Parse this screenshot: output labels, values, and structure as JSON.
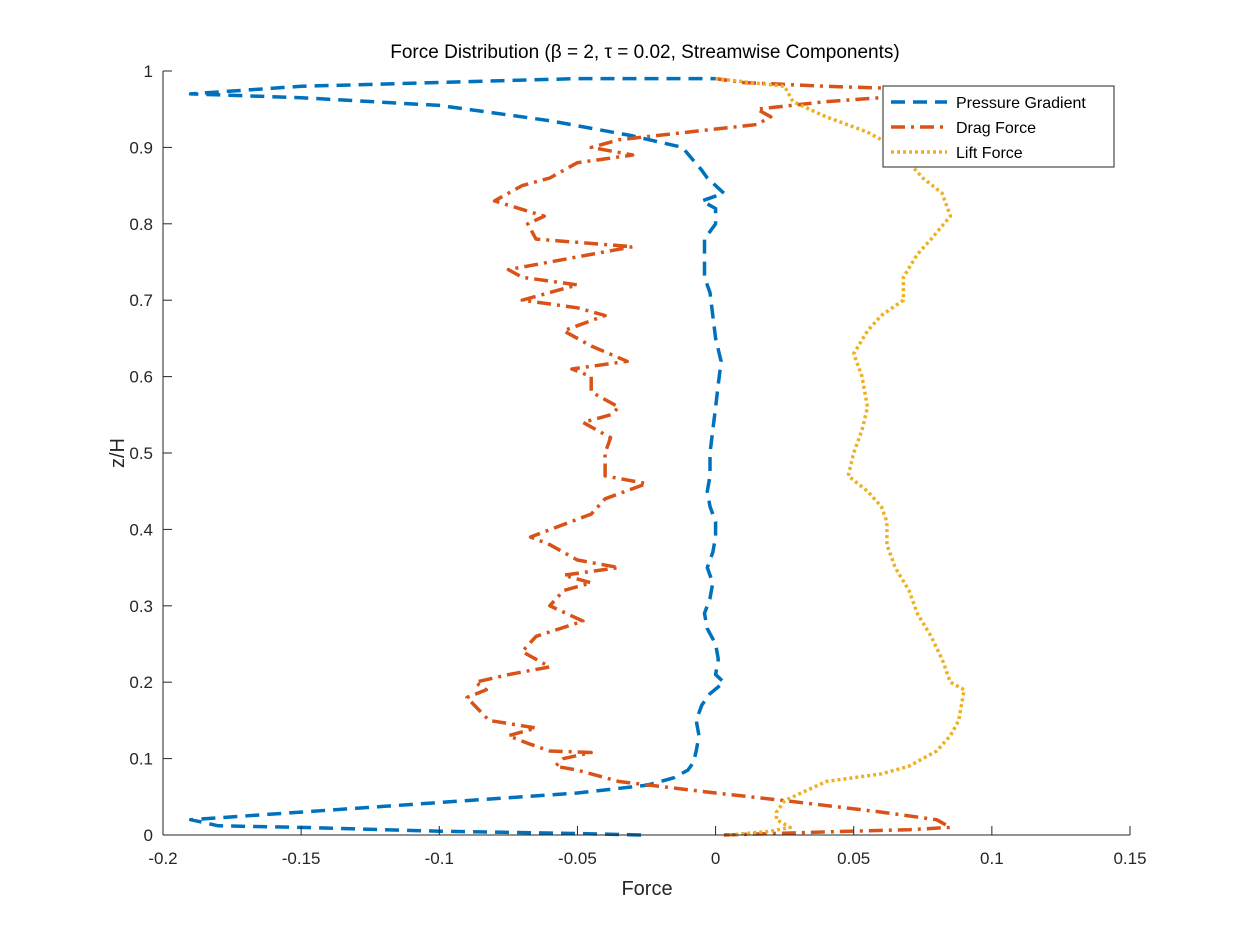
{
  "chart_data": {
    "type": "line",
    "title": "Force Distribution (β = 2, τ = 0.02, Streamwise Components)",
    "xlabel": "Force",
    "ylabel": "z/H",
    "xlim": [
      -0.2,
      0.15
    ],
    "ylim": [
      0,
      1
    ],
    "xticks": [
      "-0.2",
      "-0.15",
      "-0.1",
      "-0.05",
      "0",
      "0.05",
      "0.1",
      "0.15"
    ],
    "yticks": [
      "0",
      "0.1",
      "0.2",
      "0.3",
      "0.4",
      "0.5",
      "0.6",
      "0.7",
      "0.8",
      "0.9",
      "1"
    ],
    "grid": false,
    "legend_position": "top-right",
    "series": [
      {
        "name": "Pressure Gradient",
        "color": "#0072BD",
        "style": "dashed",
        "points": [
          [
            -0.027,
            0.0
          ],
          [
            -0.05,
            0.002
          ],
          [
            -0.1,
            0.005
          ],
          [
            -0.15,
            0.01
          ],
          [
            -0.18,
            0.012
          ],
          [
            -0.19,
            0.02
          ],
          [
            -0.15,
            0.03
          ],
          [
            -0.09,
            0.045
          ],
          [
            -0.05,
            0.055
          ],
          [
            -0.025,
            0.065
          ],
          [
            -0.015,
            0.075
          ],
          [
            -0.01,
            0.085
          ],
          [
            -0.008,
            0.095
          ],
          [
            -0.007,
            0.11
          ],
          [
            -0.006,
            0.13
          ],
          [
            -0.007,
            0.15
          ],
          [
            -0.005,
            0.17
          ],
          [
            -0.002,
            0.185
          ],
          [
            0.003,
            0.2
          ],
          [
            0.0,
            0.21
          ],
          [
            0.001,
            0.23
          ],
          [
            0.0,
            0.25
          ],
          [
            -0.003,
            0.27
          ],
          [
            -0.004,
            0.29
          ],
          [
            -0.002,
            0.31
          ],
          [
            -0.001,
            0.33
          ],
          [
            -0.003,
            0.35
          ],
          [
            -0.001,
            0.37
          ],
          [
            0.0,
            0.39
          ],
          [
            0.0,
            0.41
          ],
          [
            -0.002,
            0.43
          ],
          [
            -0.003,
            0.45
          ],
          [
            -0.002,
            0.47
          ],
          [
            -0.002,
            0.5
          ],
          [
            -0.001,
            0.53
          ],
          [
            0.0,
            0.56
          ],
          [
            0.001,
            0.59
          ],
          [
            0.002,
            0.62
          ],
          [
            0.0,
            0.65
          ],
          [
            -0.001,
            0.68
          ],
          [
            -0.002,
            0.71
          ],
          [
            -0.004,
            0.73
          ],
          [
            -0.004,
            0.76
          ],
          [
            -0.004,
            0.78
          ],
          [
            0.0,
            0.8
          ],
          [
            0.0,
            0.82
          ],
          [
            -0.005,
            0.83
          ],
          [
            0.003,
            0.84
          ],
          [
            -0.003,
            0.86
          ],
          [
            -0.005,
            0.87
          ],
          [
            -0.012,
            0.9
          ],
          [
            -0.03,
            0.915
          ],
          [
            -0.06,
            0.935
          ],
          [
            -0.1,
            0.955
          ],
          [
            -0.15,
            0.965
          ],
          [
            -0.19,
            0.97
          ],
          [
            -0.15,
            0.98
          ],
          [
            -0.1,
            0.985
          ],
          [
            -0.05,
            0.99
          ],
          [
            0.0,
            0.99
          ]
        ]
      },
      {
        "name": "Drag Force",
        "color": "#D95319",
        "style": "dashdot",
        "points": [
          [
            0.003,
            0.0
          ],
          [
            0.04,
            0.004
          ],
          [
            0.07,
            0.007
          ],
          [
            0.085,
            0.01
          ],
          [
            0.08,
            0.02
          ],
          [
            0.06,
            0.03
          ],
          [
            0.025,
            0.045
          ],
          [
            0.0,
            0.055
          ],
          [
            -0.035,
            0.07
          ],
          [
            -0.05,
            0.085
          ],
          [
            -0.058,
            0.09
          ],
          [
            -0.055,
            0.1
          ],
          [
            -0.045,
            0.108
          ],
          [
            -0.06,
            0.11
          ],
          [
            -0.068,
            0.12
          ],
          [
            -0.075,
            0.13
          ],
          [
            -0.065,
            0.14
          ],
          [
            -0.082,
            0.15
          ],
          [
            -0.09,
            0.18
          ],
          [
            -0.083,
            0.19
          ],
          [
            -0.087,
            0.2
          ],
          [
            -0.075,
            0.21
          ],
          [
            -0.06,
            0.22
          ],
          [
            -0.07,
            0.24
          ],
          [
            -0.065,
            0.26
          ],
          [
            -0.048,
            0.28
          ],
          [
            -0.06,
            0.3
          ],
          [
            -0.055,
            0.32
          ],
          [
            -0.045,
            0.33
          ],
          [
            -0.055,
            0.34
          ],
          [
            -0.035,
            0.35
          ],
          [
            -0.05,
            0.36
          ],
          [
            -0.06,
            0.38
          ],
          [
            -0.067,
            0.39
          ],
          [
            -0.045,
            0.42
          ],
          [
            -0.04,
            0.44
          ],
          [
            -0.025,
            0.46
          ],
          [
            -0.04,
            0.47
          ],
          [
            -0.04,
            0.5
          ],
          [
            -0.038,
            0.52
          ],
          [
            -0.048,
            0.54
          ],
          [
            -0.038,
            0.55
          ],
          [
            -0.035,
            0.56
          ],
          [
            -0.045,
            0.58
          ],
          [
            -0.045,
            0.6
          ],
          [
            -0.052,
            0.61
          ],
          [
            -0.032,
            0.62
          ],
          [
            -0.045,
            0.64
          ],
          [
            -0.055,
            0.66
          ],
          [
            -0.04,
            0.68
          ],
          [
            -0.05,
            0.69
          ],
          [
            -0.07,
            0.7
          ],
          [
            -0.05,
            0.72
          ],
          [
            -0.07,
            0.73
          ],
          [
            -0.075,
            0.74
          ],
          [
            -0.06,
            0.75
          ],
          [
            -0.03,
            0.77
          ],
          [
            -0.065,
            0.78
          ],
          [
            -0.068,
            0.8
          ],
          [
            -0.062,
            0.81
          ],
          [
            -0.08,
            0.83
          ],
          [
            -0.075,
            0.84
          ],
          [
            -0.07,
            0.85
          ],
          [
            -0.06,
            0.86
          ],
          [
            -0.055,
            0.87
          ],
          [
            -0.05,
            0.88
          ],
          [
            -0.04,
            0.885
          ],
          [
            -0.03,
            0.89
          ],
          [
            -0.045,
            0.9
          ],
          [
            -0.035,
            0.91
          ],
          [
            -0.01,
            0.92
          ],
          [
            0.015,
            0.93
          ],
          [
            0.02,
            0.94
          ],
          [
            0.015,
            0.95
          ],
          [
            0.04,
            0.96
          ],
          [
            0.06,
            0.965
          ],
          [
            0.085,
            0.975
          ],
          [
            0.04,
            0.98
          ],
          [
            0.01,
            0.985
          ],
          [
            0.0,
            0.99
          ]
        ]
      },
      {
        "name": "Lift Force",
        "color": "#EDB120",
        "style": "dotted",
        "points": [
          [
            0.005,
            0.0
          ],
          [
            0.02,
            0.005
          ],
          [
            0.027,
            0.01
          ],
          [
            0.022,
            0.02
          ],
          [
            0.022,
            0.03
          ],
          [
            0.025,
            0.045
          ],
          [
            0.04,
            0.07
          ],
          [
            0.06,
            0.08
          ],
          [
            0.07,
            0.09
          ],
          [
            0.075,
            0.1
          ],
          [
            0.08,
            0.11
          ],
          [
            0.085,
            0.13
          ],
          [
            0.088,
            0.15
          ],
          [
            0.09,
            0.19
          ],
          [
            0.085,
            0.2
          ],
          [
            0.082,
            0.23
          ],
          [
            0.078,
            0.26
          ],
          [
            0.073,
            0.29
          ],
          [
            0.07,
            0.32
          ],
          [
            0.065,
            0.35
          ],
          [
            0.062,
            0.38
          ],
          [
            0.062,
            0.41
          ],
          [
            0.06,
            0.43
          ],
          [
            0.055,
            0.45
          ],
          [
            0.048,
            0.47
          ],
          [
            0.05,
            0.5
          ],
          [
            0.053,
            0.53
          ],
          [
            0.055,
            0.56
          ],
          [
            0.053,
            0.6
          ],
          [
            0.05,
            0.63
          ],
          [
            0.055,
            0.66
          ],
          [
            0.06,
            0.68
          ],
          [
            0.068,
            0.7
          ],
          [
            0.068,
            0.73
          ],
          [
            0.073,
            0.76
          ],
          [
            0.078,
            0.78
          ],
          [
            0.085,
            0.81
          ],
          [
            0.082,
            0.84
          ],
          [
            0.075,
            0.86
          ],
          [
            0.07,
            0.88
          ],
          [
            0.065,
            0.9
          ],
          [
            0.055,
            0.92
          ],
          [
            0.04,
            0.94
          ],
          [
            0.028,
            0.96
          ],
          [
            0.025,
            0.98
          ],
          [
            0.0,
            0.99
          ]
        ]
      }
    ]
  }
}
